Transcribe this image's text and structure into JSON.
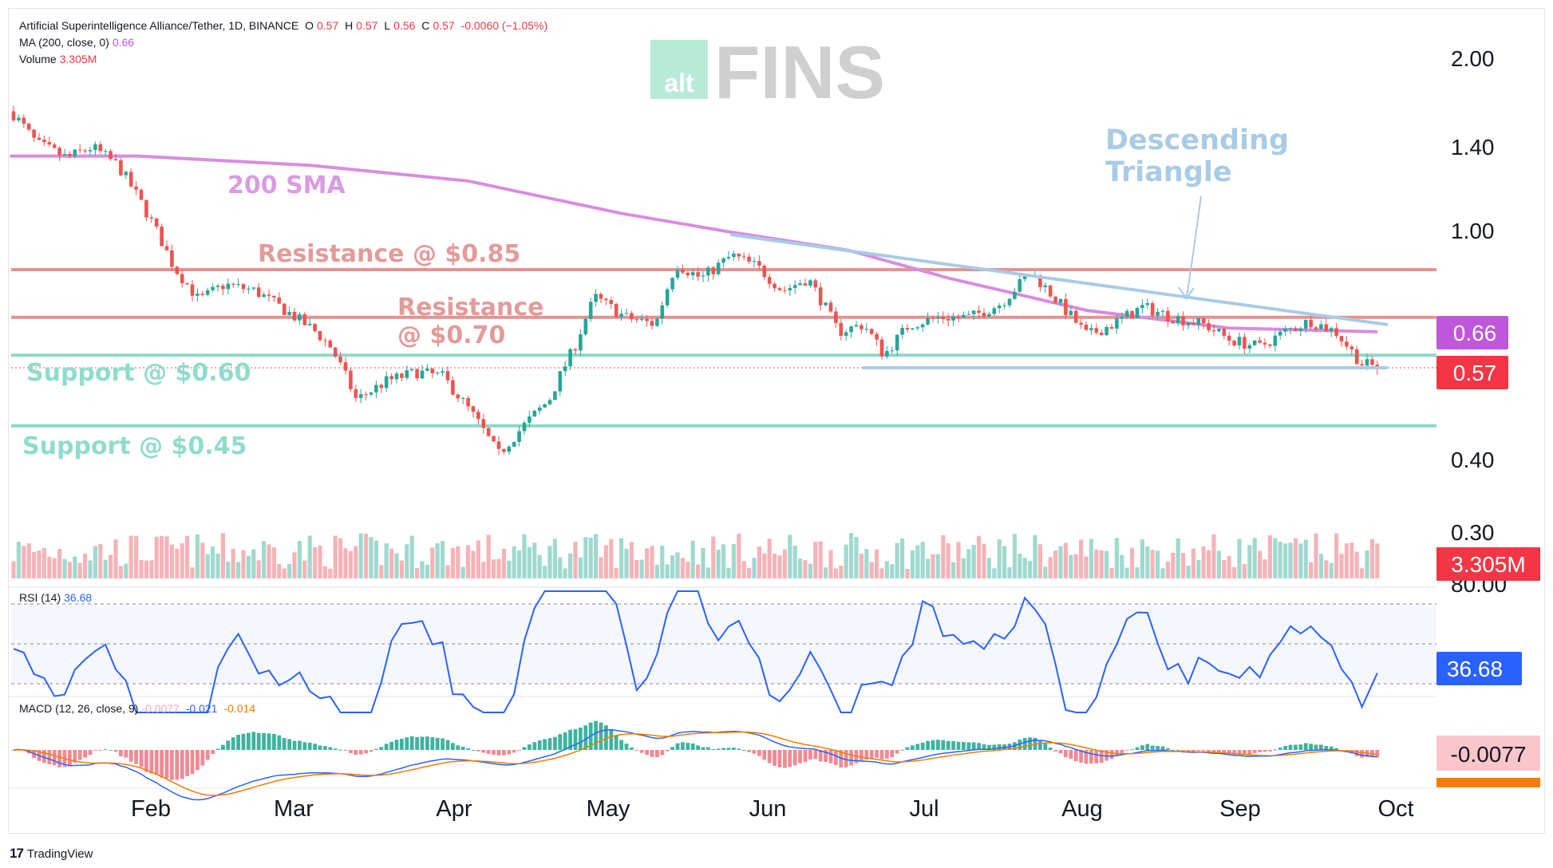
{
  "header": {
    "symbol": "Artificial Superintelligence Alliance/Tether, 1D, BINANCE",
    "o_label": "O",
    "o_value": "0.57",
    "h_label": "H",
    "h_value": "0.57",
    "l_label": "L",
    "l_value": "0.56",
    "c_label": "C",
    "c_value": "0.57",
    "change": "-0.0060 (−1.05%)",
    "ma_label": "MA (200, close, 0)",
    "ma_value": "0.66",
    "volume_label": "Volume",
    "volume_value": "3.305M"
  },
  "rsi_header": {
    "label": "RSI (14)",
    "value": "36.68"
  },
  "macd_header": {
    "label": "MACD (12, 26, close, 9)",
    "hist": "-0.0077",
    "macd": "-0.021",
    "signal": "-0.014"
  },
  "logo": {
    "part1": "alt",
    "part2": "FINS"
  },
  "annotations": {
    "sma": "200 SMA",
    "res1": "Resistance @ $0.85",
    "res2_l1": "Resistance",
    "res2_l2": "@ $0.70",
    "sup1": "Support @ $0.60",
    "sup2": "Support @ $0.45",
    "tri_l1": "Descending",
    "tri_l2": "Triangle"
  },
  "badges": {
    "ma": "0.66",
    "price": "0.57",
    "volume": "3.305M",
    "rsi": "36.68",
    "macd": "-0.0077"
  },
  "footer": {
    "brand": "TradingView"
  },
  "colors": {
    "up": "#26a69a",
    "down": "#ef5350",
    "sma": "#d88ce0",
    "resistance": "#e08888",
    "support": "#80d4c4",
    "triangle": "#a8cbe6",
    "rsi": "#2962ff",
    "macd": "#2962ff",
    "signal": "#f57c00"
  },
  "chart_data": {
    "type": "candlestick",
    "title": "Artificial Superintelligence Alliance/Tether, 1D, BINANCE",
    "y_scale": "log",
    "y_ticks": [
      "2.00",
      "1.40",
      "1.00",
      "0.40",
      "0.30"
    ],
    "x_ticks": [
      "Feb",
      "Mar",
      "Apr",
      "May",
      "Jun",
      "Jul",
      "Aug",
      "Sep",
      "Oct"
    ],
    "levels": [
      {
        "label": "Resistance @ $0.85",
        "value": 0.85
      },
      {
        "label": "Resistance @ $0.70",
        "value": 0.7
      },
      {
        "label": "Support @ $0.60",
        "value": 0.6
      },
      {
        "label": "Support @ $0.45",
        "value": 0.45
      }
    ],
    "price_path": [
      {
        "date": "2025-01-01",
        "close": 1.62
      },
      {
        "date": "2025-01-06",
        "close": 1.42
      },
      {
        "date": "2025-01-12",
        "close": 1.34
      },
      {
        "date": "2025-01-17",
        "close": 1.4
      },
      {
        "date": "2025-01-22",
        "close": 1.3
      },
      {
        "date": "2025-01-27",
        "close": 1.1
      },
      {
        "date": "2025-02-02",
        "close": 0.86
      },
      {
        "date": "2025-02-07",
        "close": 0.75
      },
      {
        "date": "2025-02-12",
        "close": 0.8
      },
      {
        "date": "2025-02-18",
        "close": 0.78
      },
      {
        "date": "2025-02-24",
        "close": 0.72
      },
      {
        "date": "2025-03-02",
        "close": 0.66
      },
      {
        "date": "2025-03-05",
        "close": 0.62
      },
      {
        "date": "2025-03-10",
        "close": 0.5
      },
      {
        "date": "2025-03-16",
        "close": 0.54
      },
      {
        "date": "2025-03-22",
        "close": 0.56
      },
      {
        "date": "2025-03-27",
        "close": 0.55
      },
      {
        "date": "2025-04-02",
        "close": 0.47
      },
      {
        "date": "2025-04-07",
        "close": 0.4
      },
      {
        "date": "2025-04-12",
        "close": 0.45
      },
      {
        "date": "2025-04-17",
        "close": 0.5
      },
      {
        "date": "2025-04-22",
        "close": 0.62
      },
      {
        "date": "2025-04-26",
        "close": 0.76
      },
      {
        "date": "2025-05-02",
        "close": 0.7
      },
      {
        "date": "2025-05-08",
        "close": 0.68
      },
      {
        "date": "2025-05-12",
        "close": 0.87
      },
      {
        "date": "2025-05-17",
        "close": 0.82
      },
      {
        "date": "2025-05-23",
        "close": 0.9
      },
      {
        "date": "2025-05-28",
        "close": 0.86
      },
      {
        "date": "2025-06-02",
        "close": 0.78
      },
      {
        "date": "2025-06-07",
        "close": 0.82
      },
      {
        "date": "2025-06-13",
        "close": 0.66
      },
      {
        "date": "2025-06-18",
        "close": 0.68
      },
      {
        "date": "2025-06-22",
        "close": 0.6
      },
      {
        "date": "2025-06-27",
        "close": 0.68
      },
      {
        "date": "2025-07-03",
        "close": 0.7
      },
      {
        "date": "2025-07-09",
        "close": 0.7
      },
      {
        "date": "2025-07-15",
        "close": 0.74
      },
      {
        "date": "2025-07-21",
        "close": 0.84
      },
      {
        "date": "2025-07-26",
        "close": 0.75
      },
      {
        "date": "2025-08-01",
        "close": 0.65
      },
      {
        "date": "2025-08-06",
        "close": 0.68
      },
      {
        "date": "2025-08-12",
        "close": 0.73
      },
      {
        "date": "2025-08-18",
        "close": 0.7
      },
      {
        "date": "2025-08-24",
        "close": 0.68
      },
      {
        "date": "2025-08-29",
        "close": 0.64
      },
      {
        "date": "2025-09-04",
        "close": 0.62
      },
      {
        "date": "2025-09-09",
        "close": 0.66
      },
      {
        "date": "2025-09-14",
        "close": 0.69
      },
      {
        "date": "2025-09-19",
        "close": 0.66
      },
      {
        "date": "2025-09-24",
        "close": 0.58
      },
      {
        "date": "2025-09-28",
        "close": 0.57
      }
    ],
    "sma_200": [
      {
        "date": "2025-01-01",
        "value": 1.35
      },
      {
        "date": "2025-01-26",
        "value": 1.35
      },
      {
        "date": "2025-03-01",
        "value": 1.3
      },
      {
        "date": "2025-04-01",
        "value": 1.22
      },
      {
        "date": "2025-05-01",
        "value": 1.07
      },
      {
        "date": "2025-05-23",
        "value": 0.99
      },
      {
        "date": "2025-06-15",
        "value": 0.92
      },
      {
        "date": "2025-07-05",
        "value": 0.82
      },
      {
        "date": "2025-08-01",
        "value": 0.72
      },
      {
        "date": "2025-08-29",
        "value": 0.67
      },
      {
        "date": "2025-09-27",
        "value": 0.66
      }
    ],
    "triangle_upper": [
      {
        "date": "2025-05-23",
        "value": 0.98
      },
      {
        "date": "2025-09-29",
        "value": 0.68
      }
    ],
    "triangle_lower": [
      {
        "date": "2025-06-18",
        "value": 0.57
      },
      {
        "date": "2025-09-29",
        "value": 0.57
      }
    ],
    "rsi_last": 36.68,
    "macd_last": {
      "hist": -0.0077,
      "macd": -0.021,
      "signal": -0.014
    }
  }
}
